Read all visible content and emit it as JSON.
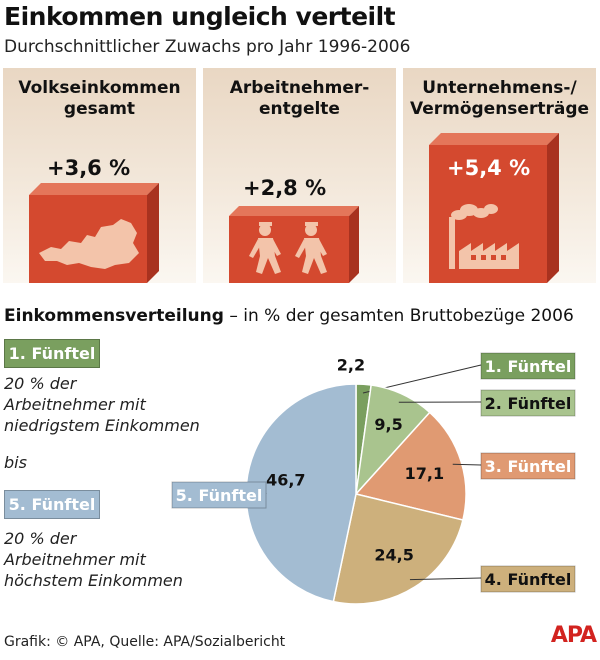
{
  "title": "Einkommen ungleich verteilt",
  "subtitle": "Durchschnittlicher Zuwachs pro Jahr 1996-2006",
  "panels": [
    {
      "title": "Volkseinkommen\ngesamt",
      "value": "+3,6 %",
      "icon": "austria-map-icon"
    },
    {
      "title": "Arbeitnehmer-\nentgelte",
      "value": "+2,8 %",
      "icon": "workers-icon"
    },
    {
      "title": "Unternehmens-/\nVermögenserträge",
      "value": "+5,4 %",
      "icon": "factory-icon"
    }
  ],
  "section": {
    "title_bold": "Einkommensverteilung",
    "title_rest": " – in % der gesamten Bruttobezüge 2006"
  },
  "legend": {
    "first_badge": "1. Fünftel",
    "first_desc": "20 % der\nArbeitnehmer mit\nniedrigstem Einkommen",
    "bis": "bis",
    "fifth_badge": "5. Fünftel",
    "fifth_desc": "20 % der\nArbeitnehmer mit\nhöchstem Einkommen"
  },
  "colors": {
    "accent_red": "#d4492f",
    "q1": "#7a9f5f",
    "q2": "#a9c48e",
    "q3": "#e09a72",
    "q4": "#cdb07c",
    "q5": "#a3bcd2"
  },
  "chart_data": {
    "type": "pie",
    "title": "Einkommensverteilung",
    "categories": [
      "1. Fünftel",
      "2. Fünftel",
      "3. Fünftel",
      "4. Fünftel",
      "5. Fünftel"
    ],
    "values": [
      2.2,
      9.5,
      17.1,
      24.5,
      46.7
    ],
    "value_labels": [
      "2,2",
      "9,5",
      "17,1",
      "24,5",
      "46,7"
    ],
    "unit": "%"
  },
  "footer": "Grafik: © APA, Quelle: APA/Sozialbericht",
  "logo": "APA"
}
